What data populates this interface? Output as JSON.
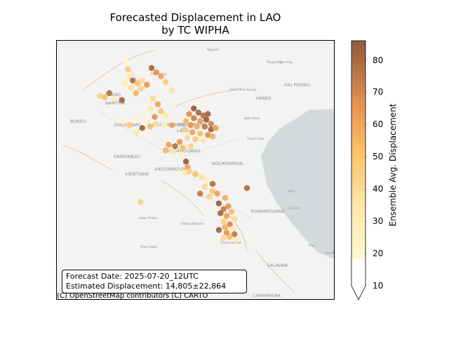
{
  "title": {
    "line1": "Forecasted Displacement in LAO",
    "line2": "by TC WIPHA"
  },
  "info": {
    "forecast_date": "Forecast Date: 2025-07-20_12UTC",
    "estimated_displacement": "Estimated Displacement: 14,805±22,864"
  },
  "attribution": "(C) OpenStreetMap contributors (C) CARTO",
  "colorbar": {
    "label": "Ensemble Avg. Displacement",
    "ticks": [
      10,
      20,
      30,
      40,
      50,
      60,
      70,
      80
    ],
    "min": 10,
    "max": 86,
    "extend": "min"
  },
  "colors": {
    "land": "#f3f3f1",
    "sea": "#d4dadc",
    "low": "#fff7c8",
    "mid": "#f6a24a",
    "high": "#8f5032"
  },
  "place_labels": [
    "LUANG",
    "NAMTHA",
    "OUDOMXAY",
    "LUANG PRABANG",
    "HOUAPHANH",
    "LAOS",
    "BOKEO",
    "SAINYABULI",
    "XIENGKHOUANG",
    "XAISOMBOUN",
    "VIENTIANE",
    "BOLIKHAMSAI",
    "KHAMMOUANE",
    "SALAVAN",
    "CHAMPASAK",
    "HANOI",
    "HAI PHONG",
    "Vinh",
    "Ha Tinh",
    "Thanh Hoa",
    "Nam Dinh",
    "Viet Tri",
    "Bac Giang",
    "Udon Thani",
    "Sakon Nakhon",
    "Savannakhet",
    "Khon Kaen",
    "Hue",
    "Da Nang",
    "Nanning",
    "Pingxiang",
    "Nguyen",
    "Phongsaly"
  ],
  "hexes": [
    {
      "lon": 101.85,
      "lat": 22.2,
      "v": 22
    },
    {
      "lon": 101.9,
      "lat": 21.95,
      "v": 40
    },
    {
      "lon": 101.95,
      "lat": 21.7,
      "v": 30
    },
    {
      "lon": 102.05,
      "lat": 21.55,
      "v": 78
    },
    {
      "lon": 102.2,
      "lat": 21.45,
      "v": 45
    },
    {
      "lon": 102.35,
      "lat": 21.55,
      "v": 35
    },
    {
      "lon": 102.5,
      "lat": 21.4,
      "v": 60
    },
    {
      "lon": 102.3,
      "lat": 21.25,
      "v": 38
    },
    {
      "lon": 102.15,
      "lat": 21.1,
      "v": 50
    },
    {
      "lon": 102.0,
      "lat": 21.3,
      "v": 32
    },
    {
      "lon": 101.8,
      "lat": 21.45,
      "v": 28
    },
    {
      "lon": 102.65,
      "lat": 22.0,
      "v": 80
    },
    {
      "lon": 102.8,
      "lat": 21.85,
      "v": 62
    },
    {
      "lon": 102.95,
      "lat": 21.7,
      "v": 55
    },
    {
      "lon": 103.1,
      "lat": 21.5,
      "v": 40
    },
    {
      "lon": 103.3,
      "lat": 21.2,
      "v": 30
    },
    {
      "lon": 101.3,
      "lat": 21.1,
      "v": 75
    },
    {
      "lon": 101.15,
      "lat": 20.95,
      "v": 45
    },
    {
      "lon": 101.0,
      "lat": 21.0,
      "v": 38
    },
    {
      "lon": 101.45,
      "lat": 20.9,
      "v": 25
    },
    {
      "lon": 101.7,
      "lat": 20.85,
      "v": 82
    },
    {
      "lon": 102.7,
      "lat": 20.9,
      "v": 35
    },
    {
      "lon": 102.85,
      "lat": 20.7,
      "v": 55
    },
    {
      "lon": 102.6,
      "lat": 20.55,
      "v": 30
    },
    {
      "lon": 102.95,
      "lat": 20.45,
      "v": 42
    },
    {
      "lon": 103.1,
      "lat": 20.3,
      "v": 28
    },
    {
      "lon": 102.75,
      "lat": 20.25,
      "v": 60
    },
    {
      "lon": 102.5,
      "lat": 20.1,
      "v": 22
    },
    {
      "lon": 102.2,
      "lat": 20.2,
      "v": 24
    },
    {
      "lon": 101.95,
      "lat": 19.95,
      "v": 40
    },
    {
      "lon": 101.75,
      "lat": 20.1,
      "v": 20
    },
    {
      "lon": 102.35,
      "lat": 19.85,
      "v": 82
    },
    {
      "lon": 102.6,
      "lat": 19.9,
      "v": 45
    },
    {
      "lon": 102.15,
      "lat": 19.7,
      "v": 30
    },
    {
      "lon": 102.8,
      "lat": 20.0,
      "v": 34
    },
    {
      "lon": 103.05,
      "lat": 19.95,
      "v": 26
    },
    {
      "lon": 103.3,
      "lat": 19.95,
      "v": 55
    },
    {
      "lon": 104.0,
      "lat": 20.55,
      "v": 85
    },
    {
      "lon": 104.15,
      "lat": 20.4,
      "v": 80
    },
    {
      "lon": 104.3,
      "lat": 20.3,
      "v": 75
    },
    {
      "lon": 104.45,
      "lat": 20.35,
      "v": 82
    },
    {
      "lon": 103.85,
      "lat": 20.35,
      "v": 62
    },
    {
      "lon": 104.0,
      "lat": 20.2,
      "v": 70
    },
    {
      "lon": 104.2,
      "lat": 20.1,
      "v": 58
    },
    {
      "lon": 104.4,
      "lat": 20.15,
      "v": 84
    },
    {
      "lon": 104.55,
      "lat": 20.0,
      "v": 65
    },
    {
      "lon": 103.75,
      "lat": 20.1,
      "v": 48
    },
    {
      "lon": 103.9,
      "lat": 19.95,
      "v": 60
    },
    {
      "lon": 104.1,
      "lat": 19.9,
      "v": 52
    },
    {
      "lon": 104.35,
      "lat": 19.9,
      "v": 72
    },
    {
      "lon": 104.55,
      "lat": 19.8,
      "v": 80
    },
    {
      "lon": 104.7,
      "lat": 19.85,
      "v": 55
    },
    {
      "lon": 103.7,
      "lat": 19.8,
      "v": 40
    },
    {
      "lon": 103.95,
      "lat": 19.7,
      "v": 56
    },
    {
      "lon": 104.2,
      "lat": 19.65,
      "v": 46
    },
    {
      "lon": 104.45,
      "lat": 19.6,
      "v": 62
    },
    {
      "lon": 104.6,
      "lat": 19.55,
      "v": 50
    },
    {
      "lon": 103.8,
      "lat": 19.5,
      "v": 35
    },
    {
      "lon": 104.05,
      "lat": 19.45,
      "v": 42
    },
    {
      "lon": 104.3,
      "lat": 19.4,
      "v": 30
    },
    {
      "lon": 103.55,
      "lat": 19.35,
      "v": 60
    },
    {
      "lon": 103.4,
      "lat": 19.2,
      "v": 75
    },
    {
      "lon": 103.2,
      "lat": 19.25,
      "v": 55
    },
    {
      "lon": 103.65,
      "lat": 19.15,
      "v": 45
    },
    {
      "lon": 103.9,
      "lat": 19.2,
      "v": 38
    },
    {
      "lon": 103.1,
      "lat": 19.05,
      "v": 48
    },
    {
      "lon": 103.35,
      "lat": 19.0,
      "v": 30
    },
    {
      "lon": 103.6,
      "lat": 18.9,
      "v": 25
    },
    {
      "lon": 103.75,
      "lat": 18.65,
      "v": 85
    },
    {
      "lon": 103.8,
      "lat": 18.45,
      "v": 55
    },
    {
      "lon": 103.85,
      "lat": 18.3,
      "v": 40
    },
    {
      "lon": 103.7,
      "lat": 18.25,
      "v": 28
    },
    {
      "lon": 104.05,
      "lat": 18.2,
      "v": 45
    },
    {
      "lon": 104.25,
      "lat": 18.1,
      "v": 32
    },
    {
      "lon": 104.6,
      "lat": 17.85,
      "v": 78
    },
    {
      "lon": 104.45,
      "lat": 18.0,
      "v": 25
    },
    {
      "lon": 104.35,
      "lat": 17.75,
      "v": 34
    },
    {
      "lon": 104.6,
      "lat": 17.6,
      "v": 42
    },
    {
      "lon": 104.75,
      "lat": 17.5,
      "v": 55
    },
    {
      "lon": 104.5,
      "lat": 17.4,
      "v": 38
    },
    {
      "lon": 105.0,
      "lat": 17.35,
      "v": 50
    },
    {
      "lon": 104.8,
      "lat": 17.15,
      "v": 85
    },
    {
      "lon": 105.1,
      "lat": 17.05,
      "v": 60
    },
    {
      "lon": 104.95,
      "lat": 16.95,
      "v": 70
    },
    {
      "lon": 105.2,
      "lat": 16.85,
      "v": 45
    },
    {
      "lon": 104.85,
      "lat": 16.8,
      "v": 80
    },
    {
      "lon": 105.05,
      "lat": 16.7,
      "v": 55
    },
    {
      "lon": 105.3,
      "lat": 16.6,
      "v": 35
    },
    {
      "lon": 104.95,
      "lat": 16.5,
      "v": 40
    },
    {
      "lon": 105.15,
      "lat": 16.4,
      "v": 65
    },
    {
      "lon": 105.0,
      "lat": 16.3,
      "v": 50
    },
    {
      "lon": 105.25,
      "lat": 16.25,
      "v": 30
    },
    {
      "lon": 104.8,
      "lat": 16.2,
      "v": 82
    },
    {
      "lon": 105.05,
      "lat": 16.1,
      "v": 60
    },
    {
      "lon": 105.3,
      "lat": 16.05,
      "v": 72
    },
    {
      "lon": 105.15,
      "lat": 15.95,
      "v": 45
    },
    {
      "lon": 104.95,
      "lat": 15.9,
      "v": 35
    },
    {
      "lon": 105.35,
      "lat": 15.85,
      "v": 28
    },
    {
      "lon": 102.3,
      "lat": 17.2,
      "v": 38
    },
    {
      "lon": 104.2,
      "lat": 17.5,
      "v": 72
    },
    {
      "lon": 105.7,
      "lat": 17.7,
      "v": 78
    }
  ]
}
